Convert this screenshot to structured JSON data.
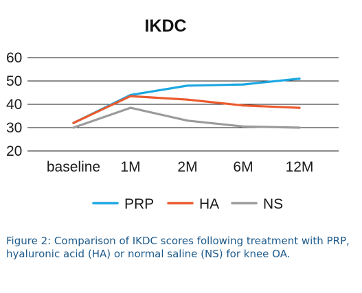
{
  "chart_data": {
    "type": "line",
    "title": "IKDC",
    "categories": [
      "baseline",
      "1M",
      "2M",
      "6M",
      "12M"
    ],
    "ylim": [
      20,
      60
    ],
    "yticks": [
      60,
      50,
      40,
      30,
      20
    ],
    "grid": true,
    "legend_position": "bottom",
    "series": [
      {
        "name": "PRP",
        "values": [
          32,
          44,
          48,
          48.5,
          51
        ],
        "color": "#1ba7e1"
      },
      {
        "name": "HA",
        "values": [
          32,
          43.5,
          42,
          39.5,
          38.5
        ],
        "color": "#eb5a2e"
      },
      {
        "name": "NS",
        "values": [
          30,
          38.5,
          33,
          30.5,
          30
        ],
        "color": "#9b9b9b"
      }
    ]
  },
  "caption": "Figure 2: Comparison of IKDC scores following treatment with PRP, hyaluronic acid (HA) or normal saline (NS) for knee OA."
}
